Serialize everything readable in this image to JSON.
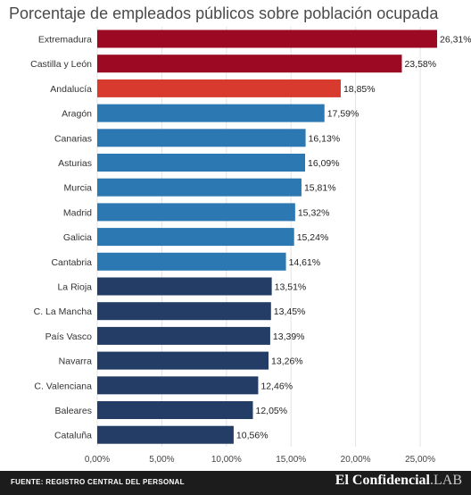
{
  "title": "Porcentaje de empleados públicos sobre población ocupada",
  "footer": {
    "source": "FUENTE: REGISTRO CENTRAL DEL PERSONAL",
    "brand_main": "El Confidencial",
    "brand_suffix": ".LAB"
  },
  "chart_data": {
    "type": "bar",
    "orientation": "horizontal",
    "title": "Porcentaje de empleados públicos sobre población ocupada",
    "categories": [
      "Extremadura",
      "Castilla y León",
      "Andalucía",
      "Aragón",
      "Canarias",
      "Asturias",
      "Murcia",
      "Madrid",
      "Galicia",
      "Cantabria",
      "La Rioja",
      "C. La Mancha",
      "País Vasco",
      "Navarra",
      "C. Valenciana",
      "Baleares",
      "Cataluña"
    ],
    "values": [
      26.31,
      23.58,
      18.85,
      17.59,
      16.13,
      16.09,
      15.81,
      15.32,
      15.24,
      14.61,
      13.51,
      13.45,
      13.39,
      13.26,
      12.46,
      12.05,
      10.56
    ],
    "data_labels": [
      "26,31%",
      "23,58%",
      "18,85%",
      "17,59%",
      "16,13%",
      "16,09%",
      "15,81%",
      "15,32%",
      "15,24%",
      "14,61%",
      "13,51%",
      "13,45%",
      "13,39%",
      "13,26%",
      "12,46%",
      "12,05%",
      "10,56%"
    ],
    "bar_colors": [
      "#9b0a22",
      "#9b0a22",
      "#d93a2e",
      "#2b78b3",
      "#2b78b3",
      "#2b78b3",
      "#2b78b3",
      "#2b78b3",
      "#2b78b3",
      "#2b78b3",
      "#233d66",
      "#233d66",
      "#233d66",
      "#233d66",
      "#233d66",
      "#233d66",
      "#233d66"
    ],
    "x_ticks": [
      0,
      5,
      10,
      15,
      20,
      25
    ],
    "x_tick_labels": [
      "0,00%",
      "5,00%",
      "10,00%",
      "15,00%",
      "20,00%",
      "25,00%"
    ],
    "xlim": [
      0,
      27
    ],
    "grid": true,
    "legend": "none"
  }
}
